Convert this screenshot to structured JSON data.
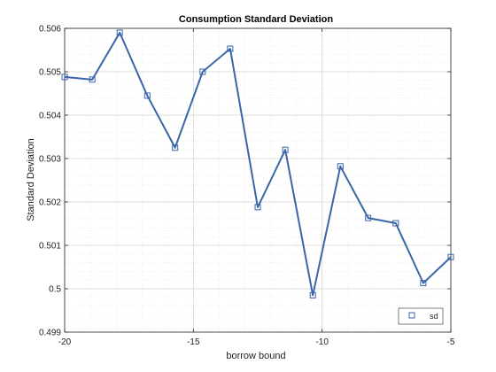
{
  "chart_data": {
    "type": "line",
    "title": "Consumption Standard Deviation",
    "xlabel": "borrow bound",
    "ylabel": "Standard Deviation",
    "xlim": [
      -20,
      -5
    ],
    "ylim": [
      0.499,
      0.506
    ],
    "x_ticks": [
      -20,
      -15,
      -10,
      -5
    ],
    "x_tick_labels": [
      "-20",
      "-15",
      "-10",
      "-5"
    ],
    "y_ticks": [
      0.499,
      0.5,
      0.501,
      0.502,
      0.503,
      0.504,
      0.505,
      0.506
    ],
    "y_tick_labels": [
      "0.499",
      "0.5",
      "0.501",
      "0.502",
      "0.503",
      "0.504",
      "0.505",
      "0.506"
    ],
    "grid": true,
    "legend": {
      "position": "bottom-right",
      "entries": [
        "sd"
      ]
    },
    "series": [
      {
        "name": "sd",
        "color": "#3a66a8",
        "marker": "square",
        "x": [
          -20,
          -18.93,
          -17.86,
          -16.79,
          -15.71,
          -14.64,
          -13.57,
          -12.5,
          -11.43,
          -10.36,
          -9.29,
          -8.21,
          -7.14,
          -6.07,
          -5
        ],
        "y": [
          0.50488,
          0.50482,
          0.5059,
          0.50445,
          0.50325,
          0.505,
          0.50553,
          0.50188,
          0.5032,
          0.49985,
          0.50282,
          0.50163,
          0.50151,
          0.50013,
          0.50073
        ]
      }
    ]
  }
}
